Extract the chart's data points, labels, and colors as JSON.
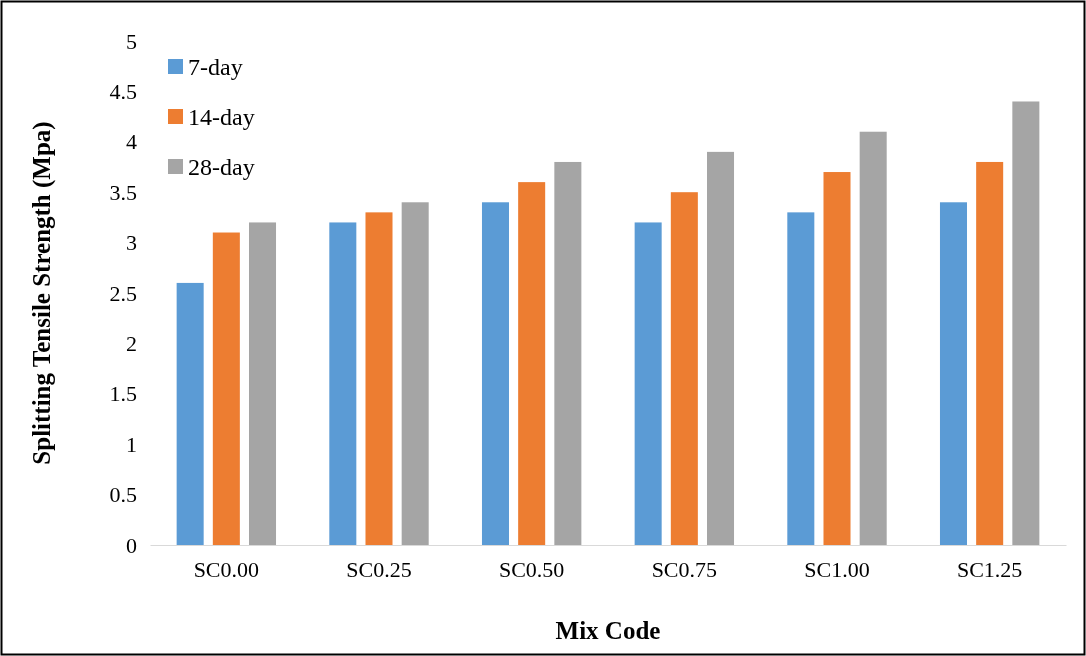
{
  "chart_data": {
    "type": "bar",
    "xlabel": "Mix Code",
    "ylabel": "Splitting Tensile Strength (Mpa)",
    "categories": [
      "SC0.00",
      "SC0.25",
      "SC0.50",
      "SC0.75",
      "SC1.00",
      "SC1.25"
    ],
    "series": [
      {
        "name": "7-day",
        "color": "#5b9bd5",
        "values": [
          2.6,
          3.2,
          3.4,
          3.2,
          3.3,
          3.4
        ]
      },
      {
        "name": "14-day",
        "color": "#ed7d31",
        "values": [
          3.1,
          3.3,
          3.6,
          3.5,
          3.7,
          3.8
        ]
      },
      {
        "name": "28-day",
        "color": "#a5a5a5",
        "values": [
          3.2,
          3.4,
          3.8,
          3.9,
          4.1,
          4.4
        ]
      }
    ],
    "ylim": [
      0,
      5
    ],
    "yticks": [
      0,
      0.5,
      1,
      1.5,
      2,
      2.5,
      3,
      3.5,
      4,
      4.5,
      5
    ],
    "grid": false,
    "legend": "top left"
  }
}
